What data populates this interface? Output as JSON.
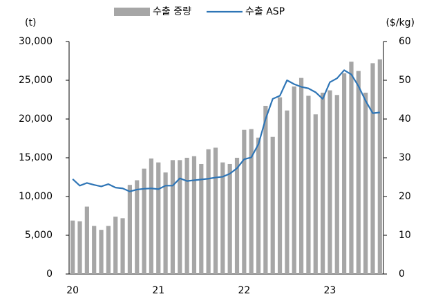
{
  "chart_data": {
    "type": "bar_line",
    "y_label": "(t)",
    "y2_label": "($/kg)",
    "categories": [
      "20",
      null,
      null,
      null,
      null,
      null,
      null,
      null,
      null,
      null,
      null,
      null,
      "21",
      null,
      null,
      null,
      null,
      null,
      null,
      null,
      null,
      null,
      null,
      null,
      "22",
      null,
      null,
      null,
      null,
      null,
      null,
      null,
      null,
      null,
      null,
      null,
      "23",
      null,
      null,
      null,
      null,
      null,
      null,
      null
    ],
    "series": [
      {
        "name": "수출 중량",
        "type": "bar",
        "color": "#a6a6a6",
        "values": [
          6900,
          6800,
          8700,
          6200,
          5700,
          6200,
          7400,
          7200,
          11500,
          12100,
          13600,
          14900,
          14400,
          13100,
          14700,
          14700,
          15000,
          15200,
          14200,
          16100,
          16300,
          14400,
          14200,
          15000,
          18600,
          18700,
          17600,
          21700,
          17700,
          22800,
          21100,
          24200,
          25300,
          23000,
          20600,
          23400,
          23700,
          23100,
          25900,
          27400,
          26200,
          23400,
          27200,
          27700
        ]
      },
      {
        "name": "수출 ASP",
        "type": "line",
        "axis": "y2",
        "color": "#2e75b6",
        "values": [
          24.5,
          22.8,
          23.5,
          23.0,
          22.6,
          23.2,
          22.3,
          22.1,
          21.3,
          21.8,
          22.0,
          22.1,
          21.9,
          22.8,
          22.8,
          24.7,
          24.0,
          24.2,
          24.4,
          24.6,
          24.9,
          25.1,
          25.9,
          27.3,
          29.6,
          30.1,
          33.5,
          40.0,
          45.2,
          46.0,
          50.0,
          49.0,
          48.3,
          47.9,
          46.9,
          45.2,
          49.5,
          50.5,
          52.6,
          51.5,
          48.5,
          44.7,
          41.5,
          41.7
        ]
      }
    ],
    "ylim": [
      0,
      30000
    ],
    "yticks": [
      0,
      {
        "value": 5000,
        "label": "5,000"
      },
      {
        "value": 10000,
        "label": "10,000"
      },
      {
        "value": 15000,
        "label": "15,000"
      },
      {
        "value": 20000,
        "label": "20,000"
      },
      {
        "value": 25000,
        "label": "25,000"
      },
      {
        "value": 30000,
        "label": "30,000"
      }
    ],
    "y2lim": [
      0,
      60
    ],
    "y2ticks": [
      0,
      10,
      20,
      30,
      40,
      50,
      60
    ],
    "legend": "top"
  }
}
